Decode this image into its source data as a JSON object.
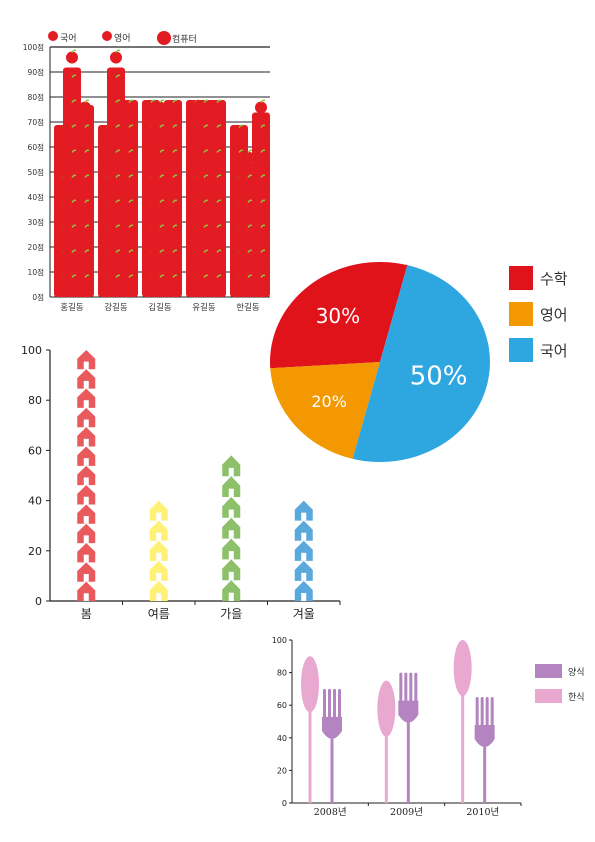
{
  "chart_data": [
    {
      "type": "bar",
      "categories": [
        "홍길동",
        "강길동",
        "김길동",
        "유길동",
        "한길동"
      ],
      "series": [
        {
          "name": "국어",
          "values": [
            72,
            72,
            82,
            82,
            72
          ]
        },
        {
          "name": "영어",
          "values": [
            95,
            95,
            78,
            82,
            57
          ]
        },
        {
          "name": "컴퓨터",
          "values": [
            80,
            82,
            82,
            82,
            77
          ]
        }
      ],
      "ylim": [
        0,
        100
      ],
      "yticks": [
        "0점",
        "10점",
        "20점",
        "30점",
        "40점",
        "50점",
        "60점",
        "70점",
        "80점",
        "90점",
        "100점"
      ],
      "legend_position": "top",
      "colors": {
        "bar": "#e31b23",
        "apple": "#e31b23",
        "leaf": "#8dc63f"
      }
    },
    {
      "type": "pie",
      "categories": [
        "수학",
        "영어",
        "국어"
      ],
      "values": [
        30,
        20,
        50
      ],
      "labels": [
        "30%",
        "20%",
        "50%"
      ],
      "colors": [
        "#e0131b",
        "#f39800",
        "#2ea7e0"
      ],
      "legend_position": "right"
    },
    {
      "type": "bar",
      "categories": [
        "봄",
        "여름",
        "가을",
        "겨울"
      ],
      "values": [
        100,
        40,
        58,
        40
      ],
      "ylim": [
        0,
        100
      ],
      "yticks": [
        0,
        20,
        40,
        60,
        80,
        100
      ],
      "colors": [
        "#e85a5c",
        "#fff176",
        "#8cc06a",
        "#5aa8dc"
      ],
      "icon": "house-icon"
    },
    {
      "type": "bar",
      "categories": [
        "2008년",
        "2009년",
        "2010년"
      ],
      "series": [
        {
          "name": "양식",
          "values": [
            70,
            80,
            65
          ]
        },
        {
          "name": "한식",
          "values": [
            90,
            75,
            100
          ]
        }
      ],
      "ylim": [
        0,
        100
      ],
      "yticks": [
        0,
        20,
        40,
        60,
        80,
        100
      ],
      "colors": {
        "양식": "#b384c0",
        "한식": "#e8a8d0"
      },
      "legend_position": "right",
      "icon": "fork-spoon-icon"
    }
  ]
}
